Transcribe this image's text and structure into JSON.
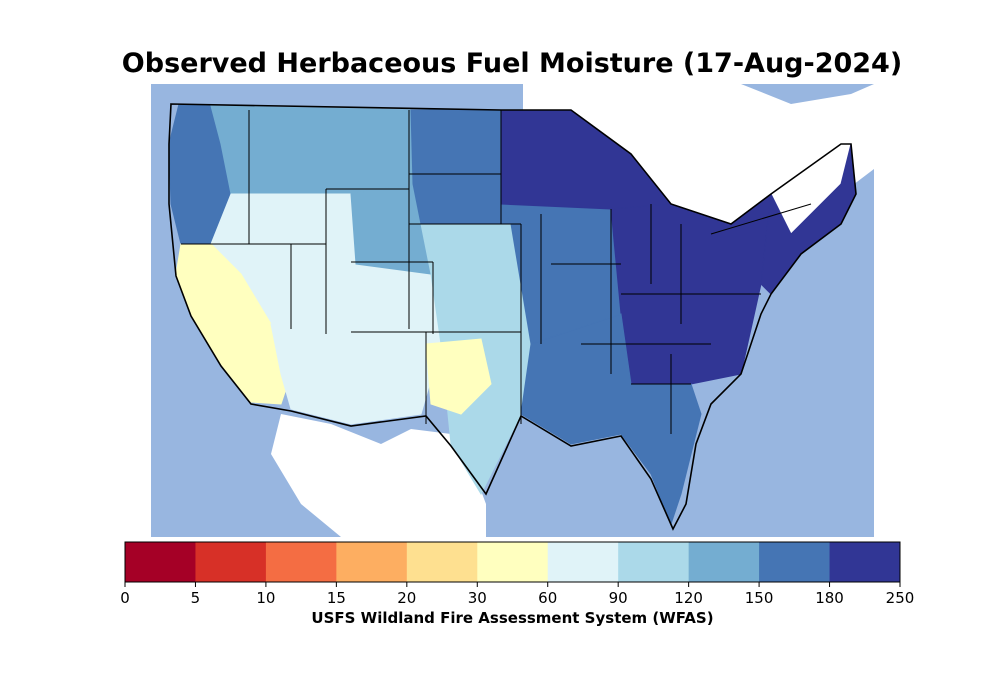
{
  "title": "Observed Herbaceous Fuel Moisture (17-Aug-2024)",
  "colorbar": {
    "label": "USFS Wildland Fire Assessment System (WFAS)",
    "ticks": [
      "0",
      "5",
      "10",
      "15",
      "20",
      "30",
      "60",
      "90",
      "120",
      "150",
      "180",
      "250"
    ],
    "colors": [
      "#a50026",
      "#d73027",
      "#f46d43",
      "#fdae61",
      "#fee090",
      "#ffffbf",
      "#e0f3f8",
      "#abd9e9",
      "#74add1",
      "#4575b4",
      "#313695"
    ]
  },
  "map": {
    "ocean_color": "#98b6e0",
    "land_outside_color": "#ffffff",
    "regions": [
      {
        "name": "pacific-northwest",
        "class_index": 9
      },
      {
        "name": "northern-rockies",
        "class_index": 8
      },
      {
        "name": "great-basin",
        "class_index": 6
      },
      {
        "name": "california",
        "class_index": 5
      },
      {
        "name": "southwest",
        "class_index": 6
      },
      {
        "name": "central-rockies",
        "class_index": 8
      },
      {
        "name": "northern-plains",
        "class_index": 9
      },
      {
        "name": "southern-plains",
        "class_index": 7
      },
      {
        "name": "west-texas",
        "class_index": 5
      },
      {
        "name": "midwest",
        "class_index": 9
      },
      {
        "name": "upper-midwest",
        "class_index": 10
      },
      {
        "name": "southeast",
        "class_index": 10
      },
      {
        "name": "gulf-coast",
        "class_index": 9
      },
      {
        "name": "northeast",
        "class_index": 10
      }
    ]
  }
}
